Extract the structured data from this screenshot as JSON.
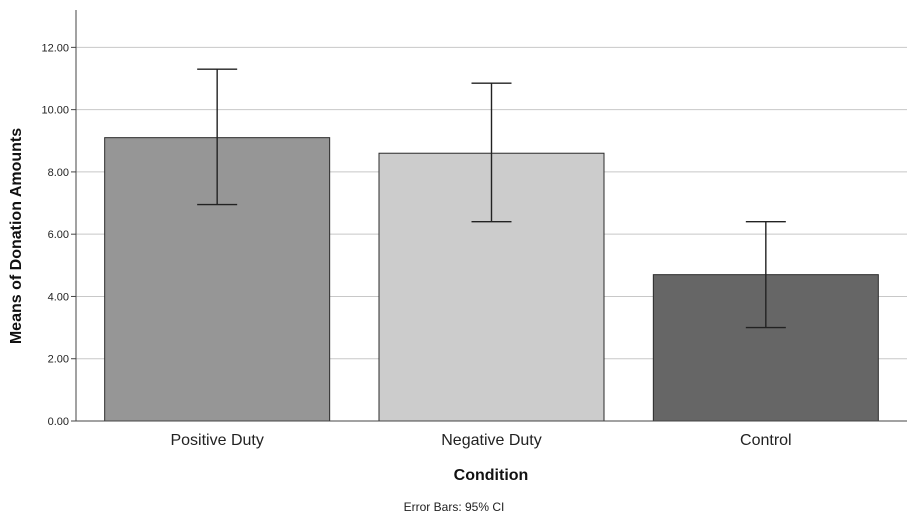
{
  "chart_data": {
    "type": "bar",
    "categories": [
      "Positive Duty",
      "Negative Duty",
      "Control"
    ],
    "values": [
      9.1,
      8.6,
      4.7
    ],
    "error_bars": {
      "type": "95% CI",
      "lower": [
        6.95,
        6.4,
        3.0
      ],
      "upper": [
        11.3,
        10.85,
        6.4
      ]
    },
    "bar_colors": [
      "#969696",
      "#cccccc",
      "#666666"
    ],
    "xlabel": "Condition",
    "ylabel": "Means of Donation Amounts",
    "ylim": [
      0,
      13.2
    ],
    "yticks": [
      "0.00",
      "2.00",
      "4.00",
      "6.00",
      "8.00",
      "10.00",
      "12.00"
    ],
    "ytick_values": [
      0,
      2,
      4,
      6,
      8,
      10,
      12
    ],
    "grid": "horizontal",
    "footnote": "Error Bars: 95% CI"
  }
}
